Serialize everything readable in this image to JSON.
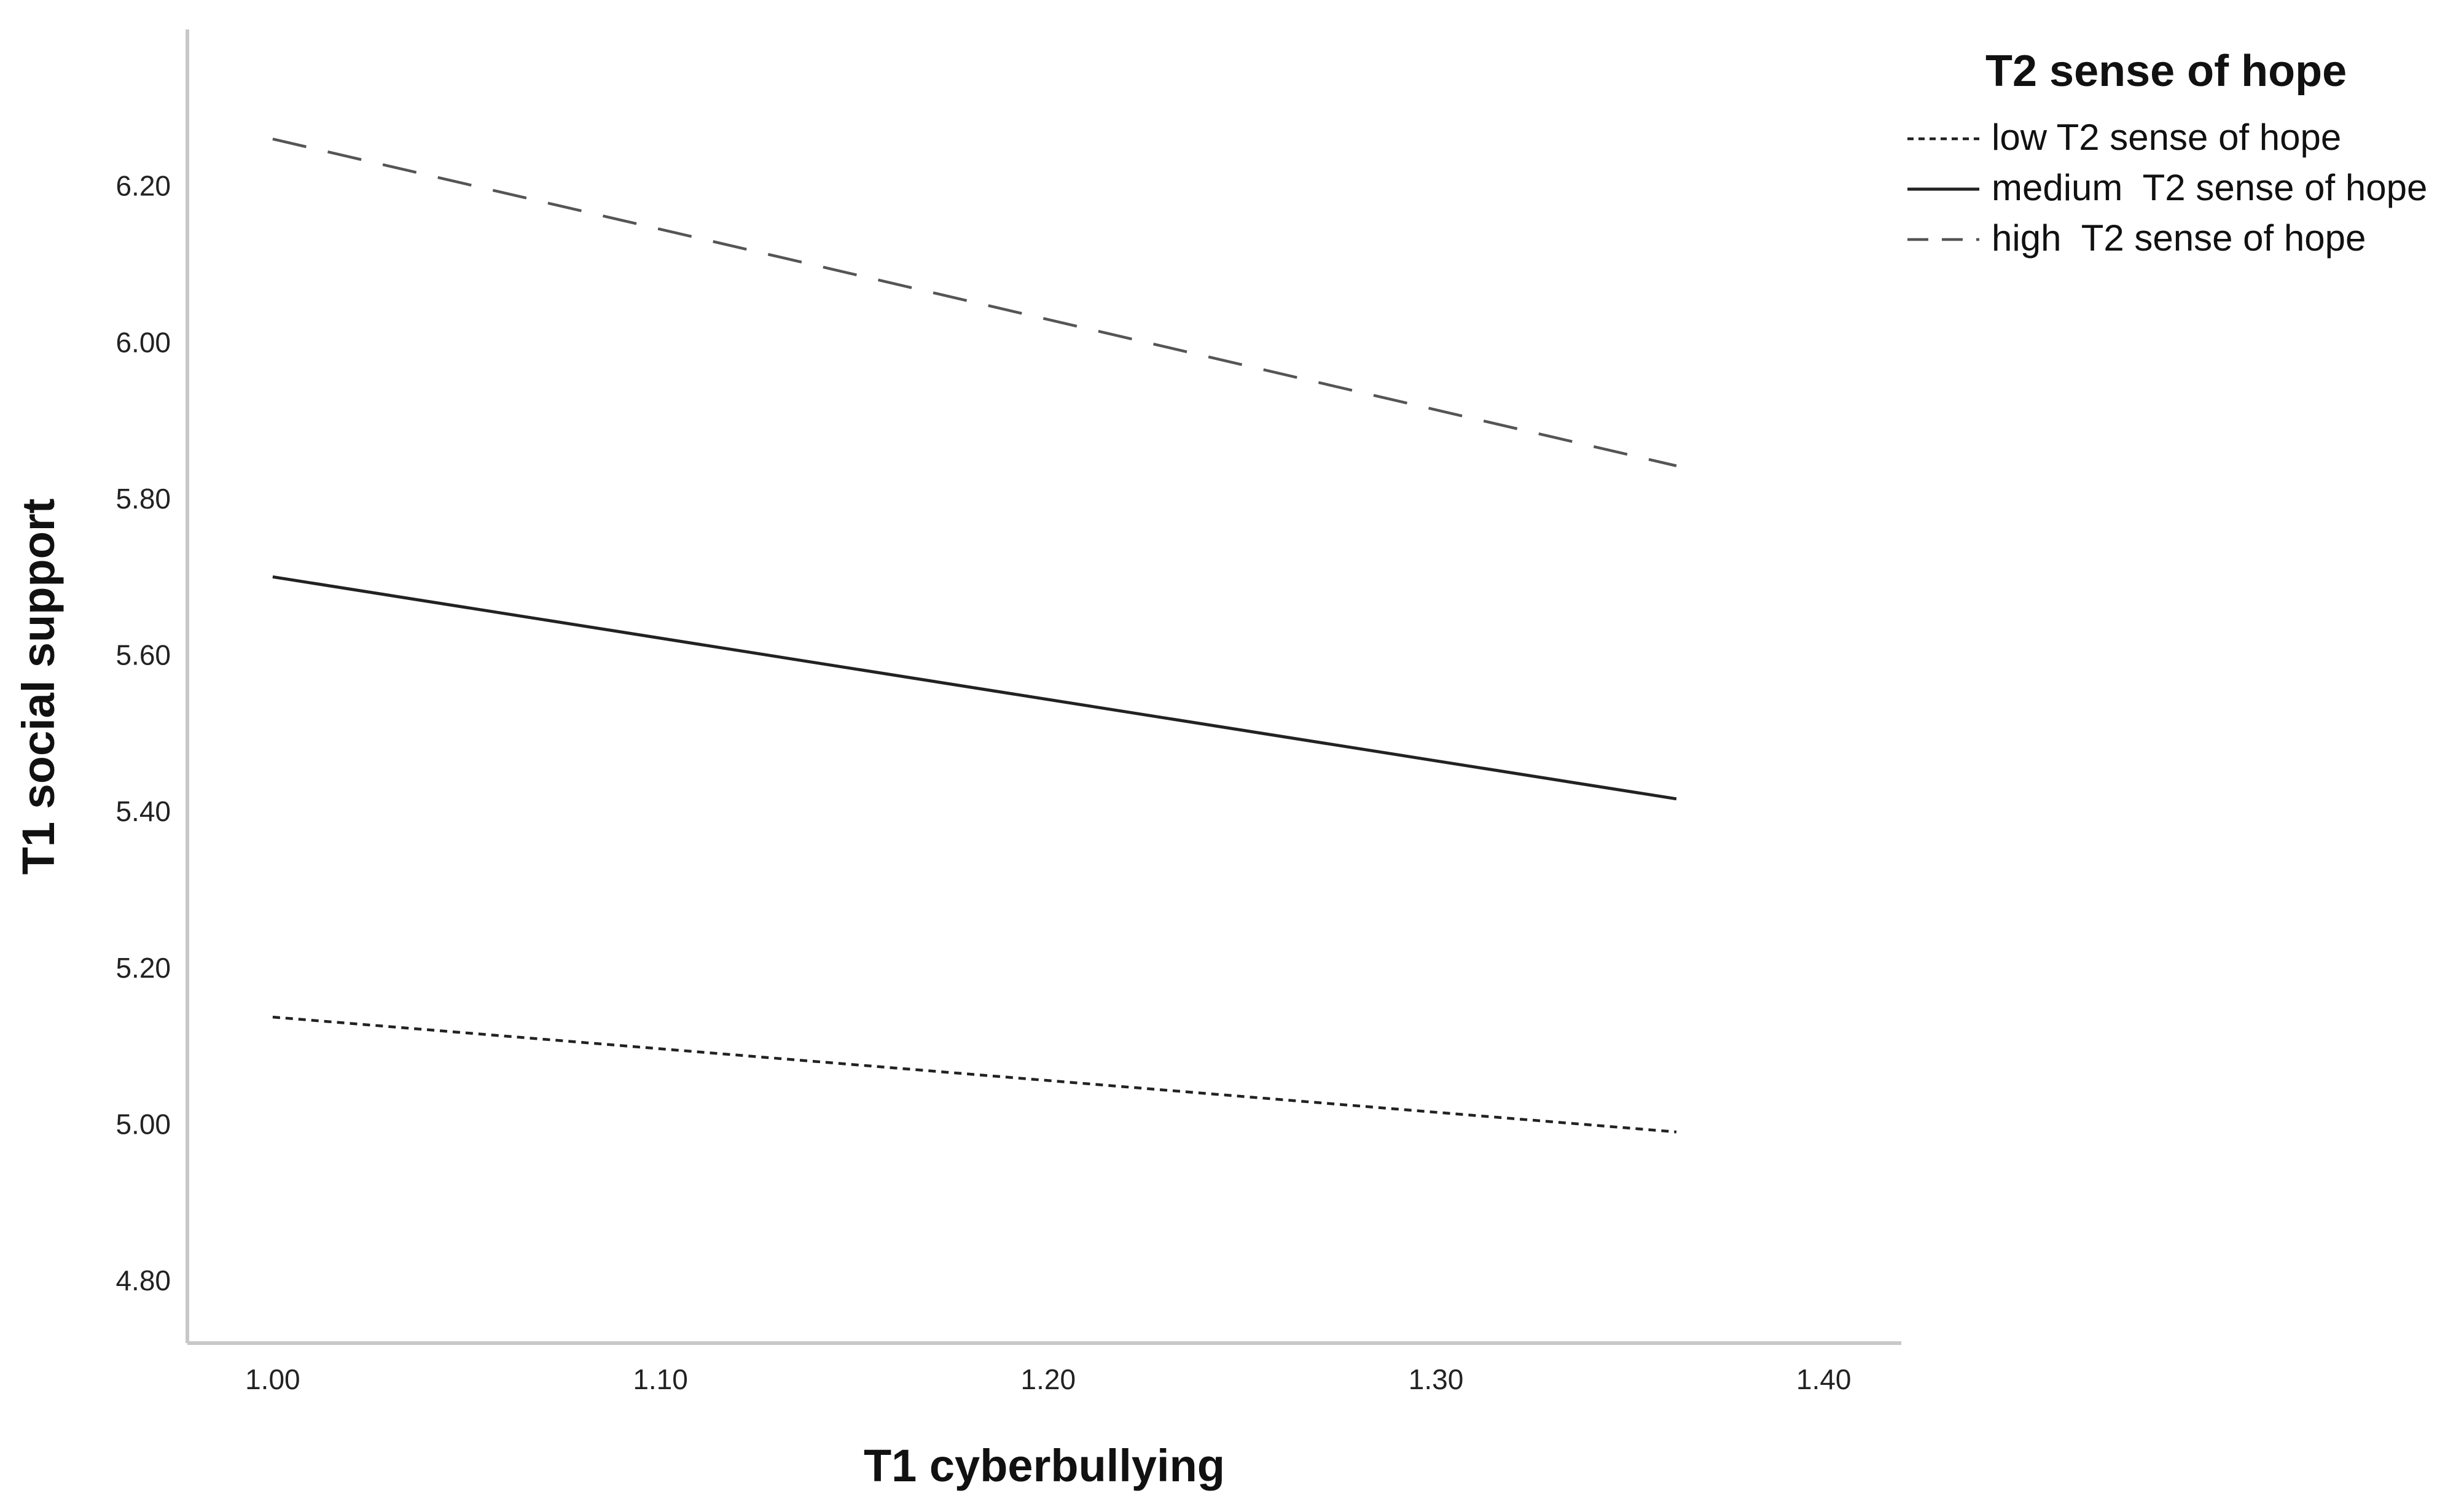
{
  "chart_data": {
    "type": "line",
    "xlabel": "T1 cyberbullying",
    "ylabel": "T1 social support",
    "xlim": [
      0.978,
      1.42
    ],
    "ylim": [
      4.72,
      6.4
    ],
    "x_ticks": [
      1.0,
      1.1,
      1.2,
      1.3,
      1.4
    ],
    "x_tick_labels": [
      "1.00",
      "1.10",
      "1.20",
      "1.30",
      "1.40"
    ],
    "y_ticks": [
      4.8,
      5.0,
      5.2,
      5.4,
      5.6,
      5.8,
      6.0,
      6.2
    ],
    "y_tick_labels": [
      "4.80",
      "5.00",
      "5.20",
      "5.40",
      "5.60",
      "5.80",
      "6.00",
      "6.20"
    ],
    "grid": false,
    "legend": {
      "title": "T2 sense of hope",
      "placement": "top-right, outside plot"
    },
    "series": [
      {
        "name": "low T2 sense of hope",
        "style": "dotted",
        "color": "#222222",
        "x": [
          1.0,
          1.362
        ],
        "y": [
          5.137,
          4.99
        ]
      },
      {
        "name": "medium  T2 sense of hope",
        "style": "solid",
        "color": "#222222",
        "x": [
          1.0,
          1.362
        ],
        "y": [
          5.7,
          5.416
        ]
      },
      {
        "name": "high  T2 sense of hope",
        "style": "dashed",
        "color": "#555555",
        "x": [
          1.0,
          1.362
        ],
        "y": [
          6.26,
          5.842
        ]
      }
    ]
  },
  "colors": {
    "axis": "#c8c8c8",
    "text": "#111111"
  }
}
